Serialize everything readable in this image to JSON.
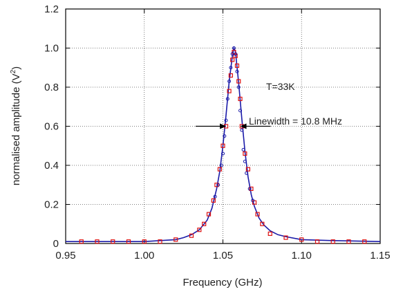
{
  "chart_data": {
    "type": "scatter",
    "xlabel": "Frequency (GHz)",
    "ylabel": "normalised amplitude (V",
    "ylabel_sup": "2",
    "ylabel_end": ")",
    "xlim": [
      0.95,
      1.15
    ],
    "ylim": [
      0,
      1.2
    ],
    "xticks": [
      "0.95",
      "1.00",
      "1.05",
      "1.10",
      "1.15"
    ],
    "yticks": [
      "0",
      "0.2",
      "0.4",
      "0.6",
      "0.8",
      "1.0",
      "1.2"
    ],
    "grid": true,
    "series": [
      {
        "kind": "fit-line",
        "color": "#1a1aa8",
        "x": [
          0.95,
          0.98,
          1.0,
          1.01,
          1.02,
          1.025,
          1.03,
          1.035,
          1.04,
          1.043,
          1.046,
          1.048,
          1.05,
          1.052,
          1.054,
          1.056,
          1.057,
          1.058,
          1.06,
          1.062,
          1.064,
          1.066,
          1.068,
          1.07,
          1.073,
          1.076,
          1.08,
          1.085,
          1.09,
          1.1,
          1.12,
          1.15
        ],
        "y": [
          0.01,
          0.01,
          0.01,
          0.015,
          0.02,
          0.03,
          0.045,
          0.07,
          0.12,
          0.18,
          0.28,
          0.37,
          0.5,
          0.66,
          0.83,
          0.96,
          1.0,
          0.98,
          0.82,
          0.64,
          0.47,
          0.34,
          0.25,
          0.19,
          0.13,
          0.095,
          0.065,
          0.045,
          0.035,
          0.02,
          0.015,
          0.01
        ]
      },
      {
        "kind": "blue-circles",
        "color": "#1a1aa8",
        "x": [
          1.045,
          1.047,
          1.049,
          1.05,
          1.051,
          1.052,
          1.053,
          1.054,
          1.055,
          1.056,
          1.057,
          1.058,
          1.059,
          1.06,
          1.061,
          1.062,
          1.063,
          1.064,
          1.065,
          1.067,
          1.069
        ],
        "y": [
          0.24,
          0.3,
          0.4,
          0.46,
          0.55,
          0.63,
          0.74,
          0.83,
          0.9,
          0.97,
          1.0,
          0.97,
          0.88,
          0.8,
          0.68,
          0.58,
          0.48,
          0.42,
          0.36,
          0.28,
          0.22
        ]
      },
      {
        "kind": "red-squares",
        "color": "#dd1111",
        "x": [
          0.96,
          0.97,
          0.98,
          0.99,
          1.0,
          1.01,
          1.02,
          1.03,
          1.035,
          1.038,
          1.041,
          1.044,
          1.046,
          1.048,
          1.05,
          1.052,
          1.054,
          1.055,
          1.056,
          1.057,
          1.058,
          1.059,
          1.06,
          1.061,
          1.062,
          1.064,
          1.066,
          1.068,
          1.07,
          1.072,
          1.075,
          1.08,
          1.09,
          1.1,
          1.11,
          1.12,
          1.13,
          1.14
        ],
        "y": [
          0.01,
          0.01,
          0.01,
          0.01,
          0.01,
          0.01,
          0.02,
          0.04,
          0.07,
          0.1,
          0.15,
          0.22,
          0.3,
          0.38,
          0.5,
          0.6,
          0.78,
          0.86,
          0.94,
          0.98,
          0.96,
          0.91,
          0.83,
          0.74,
          0.6,
          0.46,
          0.38,
          0.28,
          0.21,
          0.15,
          0.1,
          0.05,
          0.03,
          0.02,
          0.01,
          0.01,
          0.01,
          0.01
        ]
      }
    ],
    "annotations": {
      "temperature": "T=33K",
      "linewidth": "Linewidth = 10.8 MHz",
      "marker_y": 0.6,
      "arrow_left_x": 1.052,
      "arrow_right_x": 1.061,
      "arrow_y": 0.6
    }
  }
}
